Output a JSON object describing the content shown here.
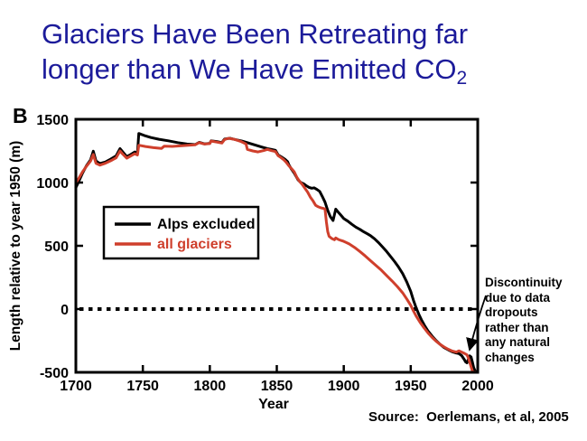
{
  "page": {
    "background": "#ffffff"
  },
  "title": {
    "line1": "Glaciers Have Been Retreating far",
    "line2_prefix": "longer than We Have Emitted CO",
    "line2_subscript": "2",
    "color": "#1c1b9a"
  },
  "panel_label": "B",
  "annotation": {
    "lines": [
      "Discontinuity",
      "due to data",
      "dropouts",
      "rather than",
      "any natural",
      "changes"
    ]
  },
  "source_note": "Source:  Oerlemans, et al, 2005",
  "chart_data": {
    "type": "line",
    "xlabel": "Year",
    "ylabel": "Length relative to year 1950 (m)",
    "xlim": [
      1700,
      2000
    ],
    "ylim": [
      -500,
      1500
    ],
    "xticks": [
      1700,
      1750,
      1800,
      1850,
      1900,
      1950,
      2000
    ],
    "yticks": [
      1500,
      1000,
      500,
      0,
      -500
    ],
    "grid": false,
    "zero_line": {
      "y": 0,
      "style": "dotted"
    },
    "legend": {
      "position": "upper-left-inside",
      "entries": [
        {
          "name": "Alps excluded",
          "color": "#000000"
        },
        {
          "name": "all glaciers",
          "color": "#cf3f2c"
        }
      ]
    },
    "series": [
      {
        "name": "Alps excluded",
        "color": "#000000",
        "points": [
          [
            1700,
            960
          ],
          [
            1702,
            1005
          ],
          [
            1705,
            1075
          ],
          [
            1708,
            1135
          ],
          [
            1711,
            1180
          ],
          [
            1713,
            1248
          ],
          [
            1715,
            1170
          ],
          [
            1718,
            1150
          ],
          [
            1722,
            1162
          ],
          [
            1726,
            1185
          ],
          [
            1730,
            1210
          ],
          [
            1733,
            1268
          ],
          [
            1735,
            1242
          ],
          [
            1738,
            1205
          ],
          [
            1741,
            1222
          ],
          [
            1744,
            1242
          ],
          [
            1746,
            1230
          ],
          [
            1747,
            1388
          ],
          [
            1751,
            1372
          ],
          [
            1756,
            1356
          ],
          [
            1762,
            1342
          ],
          [
            1769,
            1330
          ],
          [
            1776,
            1316
          ],
          [
            1783,
            1304
          ],
          [
            1789,
            1300
          ],
          [
            1792,
            1318
          ],
          [
            1796,
            1306
          ],
          [
            1800,
            1310
          ],
          [
            1801,
            1330
          ],
          [
            1805,
            1324
          ],
          [
            1809,
            1316
          ],
          [
            1811,
            1344
          ],
          [
            1815,
            1350
          ],
          [
            1819,
            1340
          ],
          [
            1824,
            1328
          ],
          [
            1829,
            1312
          ],
          [
            1834,
            1296
          ],
          [
            1839,
            1280
          ],
          [
            1843,
            1268
          ],
          [
            1846,
            1262
          ],
          [
            1849,
            1255
          ],
          [
            1851,
            1218
          ],
          [
            1853,
            1205
          ],
          [
            1856,
            1185
          ],
          [
            1858,
            1165
          ],
          [
            1859,
            1140
          ],
          [
            1861,
            1105
          ],
          [
            1863,
            1075
          ],
          [
            1866,
            1020
          ],
          [
            1868,
            1000
          ],
          [
            1870,
            990
          ],
          [
            1872,
            975
          ],
          [
            1874,
            962
          ],
          [
            1876,
            955
          ],
          [
            1878,
            958
          ],
          [
            1880,
            945
          ],
          [
            1882,
            930
          ],
          [
            1884,
            890
          ],
          [
            1886,
            845
          ],
          [
            1888,
            780
          ],
          [
            1890,
            730
          ],
          [
            1892,
            700
          ],
          [
            1893,
            745
          ],
          [
            1894,
            790
          ],
          [
            1896,
            765
          ],
          [
            1898,
            740
          ],
          [
            1900,
            715
          ],
          [
            1903,
            695
          ],
          [
            1906,
            670
          ],
          [
            1909,
            648
          ],
          [
            1912,
            630
          ],
          [
            1915,
            610
          ],
          [
            1918,
            592
          ],
          [
            1920,
            580
          ],
          [
            1923,
            555
          ],
          [
            1926,
            525
          ],
          [
            1929,
            490
          ],
          [
            1932,
            455
          ],
          [
            1935,
            415
          ],
          [
            1938,
            375
          ],
          [
            1941,
            330
          ],
          [
            1944,
            280
          ],
          [
            1947,
            215
          ],
          [
            1950,
            140
          ],
          [
            1952,
            70
          ],
          [
            1954,
            10
          ],
          [
            1956,
            -40
          ],
          [
            1958,
            -85
          ],
          [
            1960,
            -125
          ],
          [
            1963,
            -175
          ],
          [
            1966,
            -215
          ],
          [
            1969,
            -250
          ],
          [
            1972,
            -280
          ],
          [
            1975,
            -305
          ],
          [
            1978,
            -322
          ],
          [
            1981,
            -338
          ],
          [
            1984,
            -348
          ],
          [
            1986,
            -352
          ],
          [
            1988,
            -368
          ],
          [
            1990,
            -400
          ],
          [
            1991,
            -418
          ],
          [
            1992,
            -425
          ],
          [
            1993,
            -398
          ],
          [
            1994,
            -370
          ],
          [
            1995,
            -378
          ],
          [
            1996,
            -420
          ],
          [
            1997,
            -462
          ],
          [
            1998,
            -488
          ],
          [
            1999,
            -498
          ]
        ]
      },
      {
        "name": "all glaciers",
        "color": "#cf3f2c",
        "points": [
          [
            1700,
            1000
          ],
          [
            1702,
            1030
          ],
          [
            1705,
            1085
          ],
          [
            1708,
            1130
          ],
          [
            1711,
            1170
          ],
          [
            1713,
            1222
          ],
          [
            1715,
            1152
          ],
          [
            1718,
            1138
          ],
          [
            1722,
            1152
          ],
          [
            1726,
            1172
          ],
          [
            1730,
            1195
          ],
          [
            1733,
            1250
          ],
          [
            1735,
            1225
          ],
          [
            1738,
            1192
          ],
          [
            1741,
            1210
          ],
          [
            1744,
            1228
          ],
          [
            1746,
            1218
          ],
          [
            1747,
            1295
          ],
          [
            1752,
            1285
          ],
          [
            1758,
            1276
          ],
          [
            1764,
            1270
          ],
          [
            1766,
            1288
          ],
          [
            1772,
            1286
          ],
          [
            1778,
            1290
          ],
          [
            1784,
            1294
          ],
          [
            1789,
            1298
          ],
          [
            1792,
            1316
          ],
          [
            1796,
            1304
          ],
          [
            1800,
            1308
          ],
          [
            1801,
            1328
          ],
          [
            1805,
            1320
          ],
          [
            1809,
            1312
          ],
          [
            1811,
            1340
          ],
          [
            1814,
            1350
          ],
          [
            1818,
            1342
          ],
          [
            1823,
            1326
          ],
          [
            1827,
            1305
          ],
          [
            1828,
            1262
          ],
          [
            1832,
            1250
          ],
          [
            1836,
            1242
          ],
          [
            1840,
            1252
          ],
          [
            1843,
            1262
          ],
          [
            1846,
            1252
          ],
          [
            1849,
            1245
          ],
          [
            1851,
            1212
          ],
          [
            1853,
            1198
          ],
          [
            1855,
            1182
          ],
          [
            1857,
            1160
          ],
          [
            1859,
            1132
          ],
          [
            1861,
            1110
          ],
          [
            1863,
            1085
          ],
          [
            1865,
            1040
          ],
          [
            1867,
            1010
          ],
          [
            1869,
            985
          ],
          [
            1871,
            955
          ],
          [
            1873,
            925
          ],
          [
            1875,
            885
          ],
          [
            1877,
            855
          ],
          [
            1879,
            820
          ],
          [
            1881,
            808
          ],
          [
            1883,
            800
          ],
          [
            1885,
            795
          ],
          [
            1886,
            790
          ],
          [
            1887,
            690
          ],
          [
            1888,
            612
          ],
          [
            1889,
            575
          ],
          [
            1891,
            558
          ],
          [
            1893,
            548
          ],
          [
            1894,
            562
          ],
          [
            1896,
            550
          ],
          [
            1898,
            542
          ],
          [
            1900,
            535
          ],
          [
            1904,
            515
          ],
          [
            1908,
            488
          ],
          [
            1912,
            455
          ],
          [
            1916,
            420
          ],
          [
            1920,
            382
          ],
          [
            1924,
            345
          ],
          [
            1928,
            308
          ],
          [
            1932,
            265
          ],
          [
            1936,
            222
          ],
          [
            1940,
            178
          ],
          [
            1944,
            128
          ],
          [
            1947,
            80
          ],
          [
            1950,
            30
          ],
          [
            1952,
            -15
          ],
          [
            1954,
            -55
          ],
          [
            1957,
            -105
          ],
          [
            1960,
            -150
          ],
          [
            1963,
            -190
          ],
          [
            1966,
            -225
          ],
          [
            1969,
            -255
          ],
          [
            1972,
            -280
          ],
          [
            1975,
            -300
          ],
          [
            1978,
            -318
          ],
          [
            1981,
            -332
          ],
          [
            1984,
            -340
          ],
          [
            1986,
            -330
          ],
          [
            1988,
            -340
          ],
          [
            1990,
            -350
          ],
          [
            1992,
            -362
          ],
          [
            1993,
            -385
          ],
          [
            1994,
            -420
          ],
          [
            1995,
            -455
          ],
          [
            1996,
            -490
          ],
          [
            1997,
            -500
          ],
          [
            1998,
            -498
          ],
          [
            1999,
            -500
          ],
          [
            2000,
            -500
          ]
        ]
      }
    ]
  }
}
